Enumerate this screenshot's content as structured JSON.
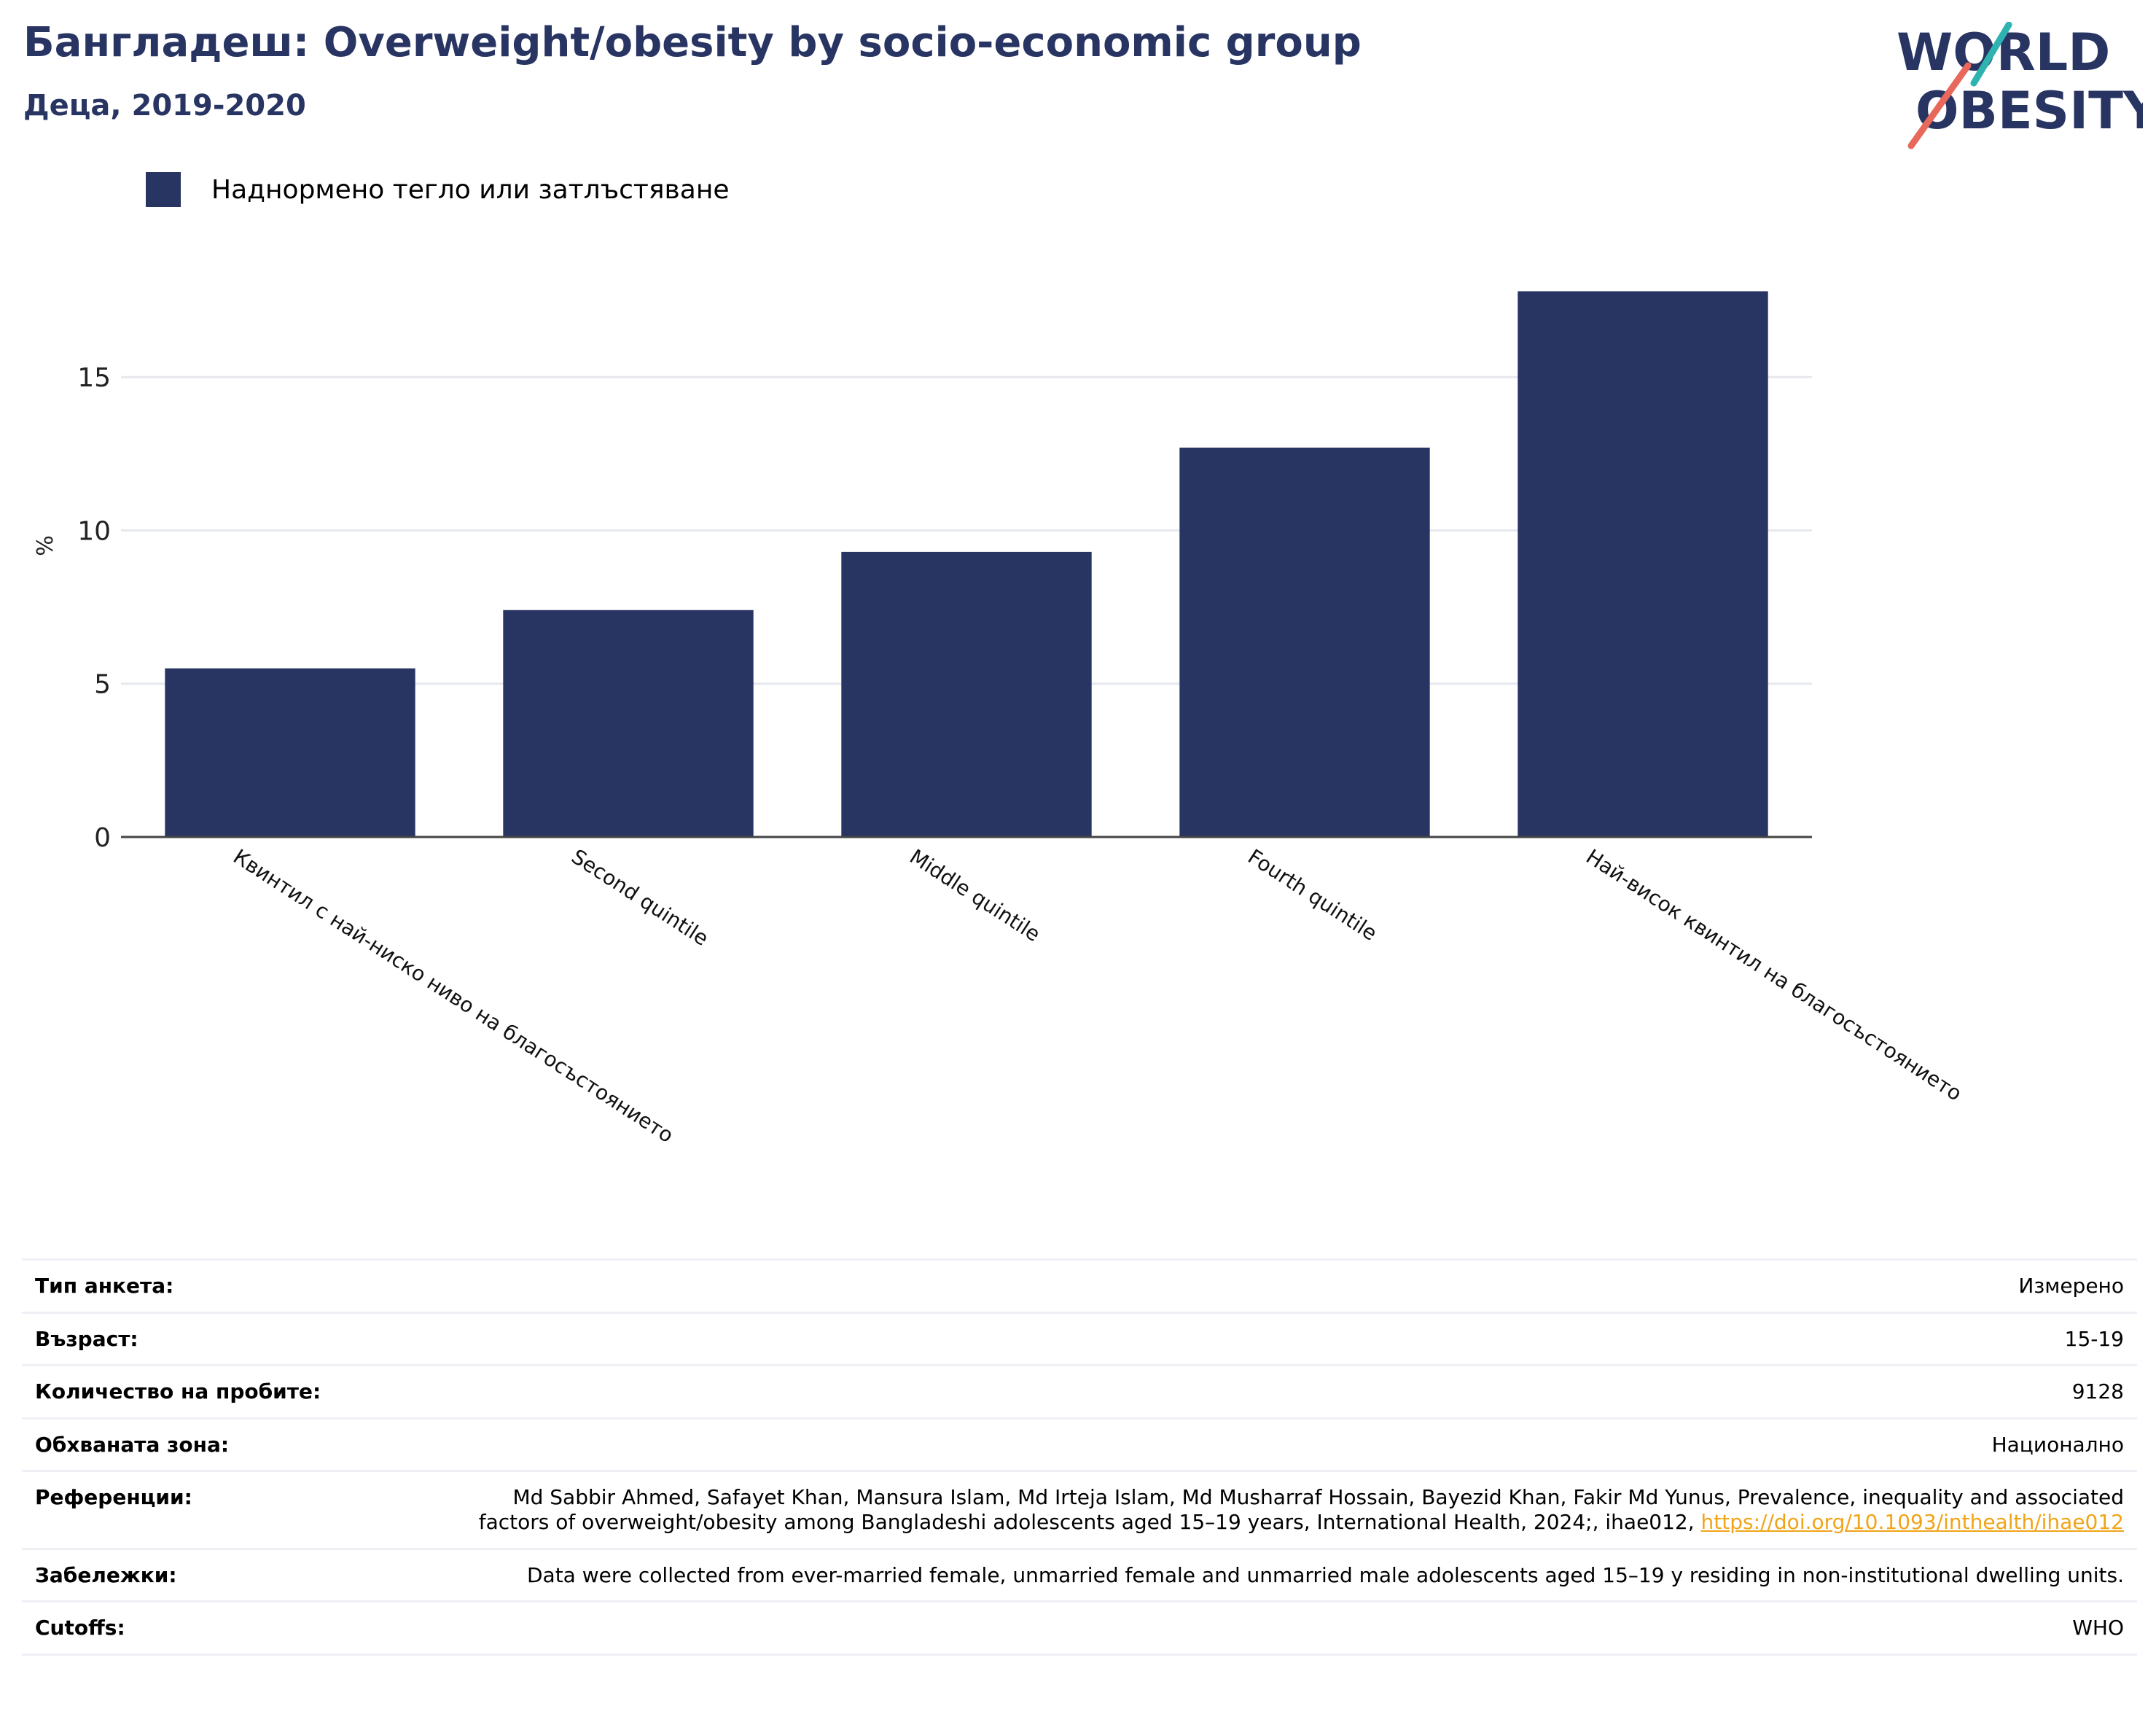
{
  "title": "Бангладеш: Overweight/obesity by socio-economic group",
  "subtitle": "Деца, 2019-2020",
  "logo": {
    "line1": "WORLD",
    "line2": "OBESITY",
    "colors": {
      "text": "#283462",
      "accent_teal": "#2fb3b0",
      "accent_red": "#e8695b"
    }
  },
  "colors": {
    "bar": "#283462",
    "grid": "#e6e8ef",
    "axis": "#444444",
    "link": "#f0a417"
  },
  "chart_data": {
    "type": "bar",
    "categories": [
      "Квинтил с най-ниско ниво на благосъстоянието",
      "Second quintile",
      "Middle quintile",
      "Fourth quintile",
      "Най-висок квинтил на благосъстоянието"
    ],
    "series": [
      {
        "name": "Наднормено тегло или затлъстяване",
        "values": [
          5.5,
          7.4,
          9.3,
          12.7,
          17.8
        ]
      }
    ],
    "ylabel": "%",
    "ylim": [
      0,
      19
    ],
    "yticks": [
      0,
      5,
      10,
      15
    ],
    "grid": true,
    "legend": "top-left"
  },
  "meta": {
    "rows": [
      {
        "key": "Тип анкета:",
        "value": "Измерено"
      },
      {
        "key": "Възраст:",
        "value": "15-19"
      },
      {
        "key": "Количество на пробите:",
        "value": "9128"
      },
      {
        "key": "Обхваната зона:",
        "value": "Национално"
      },
      {
        "key": "Референции:",
        "value": "Md Sabbir Ahmed, Safayet Khan, Mansura Islam, Md Irteja Islam, Md Musharraf Hossain, Bayezid Khan, Fakir Md Yunus, Prevalence, inequality and associated factors of overweight/obesity among Bangladeshi adolescents aged 15–19 years, International Health, 2024;, ihae012, ",
        "link": "https://doi.org/10.1093/inthealth/ihae012"
      },
      {
        "key": "Забележки:",
        "value": "Data were collected from ever-married female, unmarried female and unmarried male adolescents aged 15–19 y residing in non-institutional dwelling units."
      },
      {
        "key": "Cutoffs:",
        "value": "WHO"
      }
    ]
  }
}
